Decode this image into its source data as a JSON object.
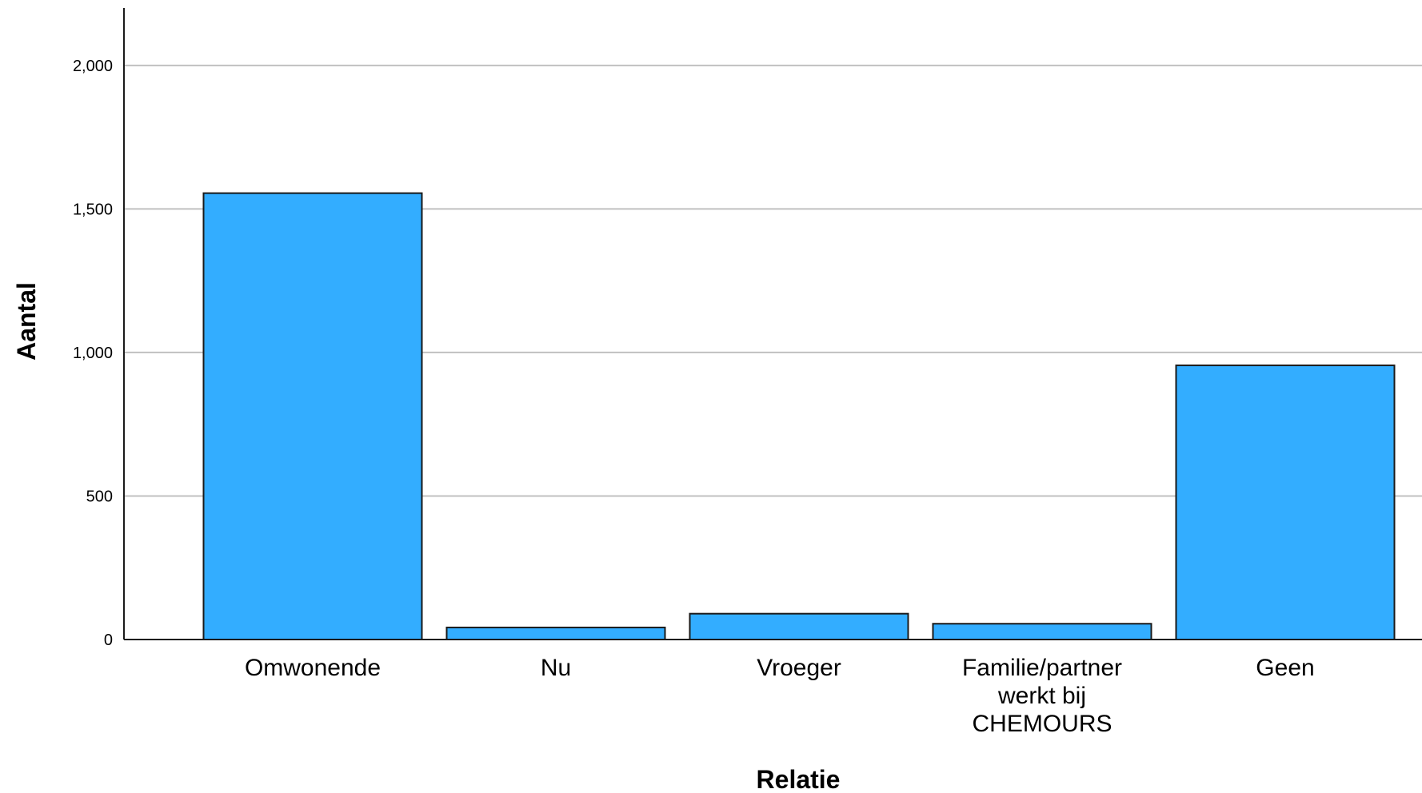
{
  "chart_data": {
    "type": "bar",
    "categories": [
      "Omwonende",
      "Nu",
      "Vroeger",
      "Familie/partner werkt bij CHEMOURS",
      "Geen"
    ],
    "category_label_lines": [
      [
        "Omwonende"
      ],
      [
        "Nu"
      ],
      [
        "Vroeger"
      ],
      [
        "Familie/partner",
        "werkt bij",
        "CHEMOURS"
      ],
      [
        "Geen"
      ]
    ],
    "values": [
      1555,
      42,
      90,
      55,
      955
    ],
    "xlabel": "Relatie",
    "ylabel": "Aantal",
    "ylim": [
      0,
      2200
    ],
    "yticks": [
      0,
      500,
      1000,
      1500,
      2000
    ],
    "ytick_labels": [
      "0",
      "500",
      "1,000",
      "1,500",
      "2,000"
    ],
    "grid": true,
    "bar_color": "#33adff",
    "bar_edge_color": "#1a1a1a",
    "grid_color": "#c0c0c0",
    "legend": "none"
  }
}
